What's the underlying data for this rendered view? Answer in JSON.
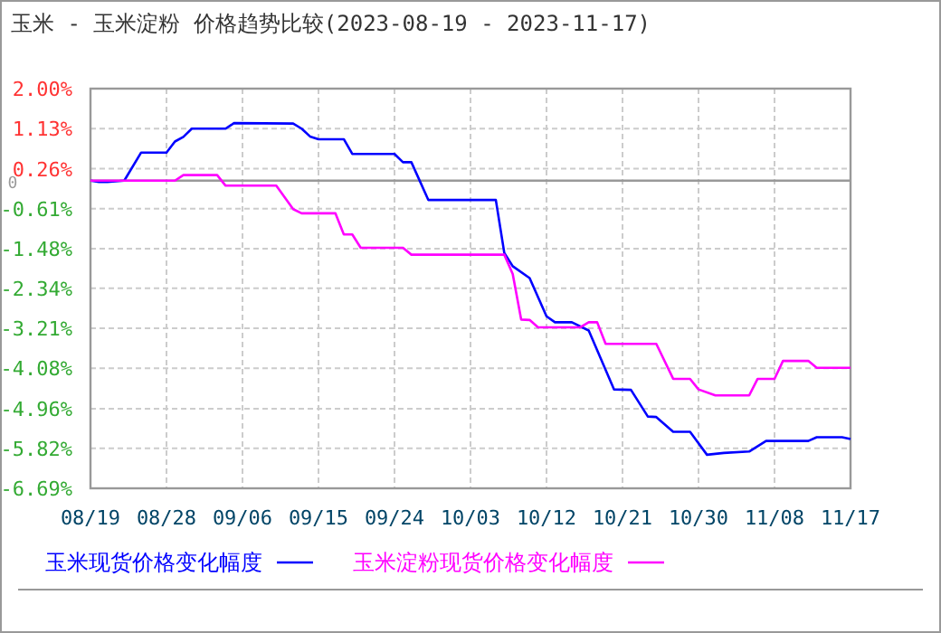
{
  "chart_data": {
    "type": "line",
    "title": "玉米 - 玉米淀粉 价格趋势比较(2023-08-19 - 2023-11-17)",
    "xlim": [
      "2023-08-19",
      "2023-11-17"
    ],
    "xticks": [
      {
        "value": "2023-08-19",
        "label": "08/19"
      },
      {
        "value": "2023-08-28",
        "label": "08/28"
      },
      {
        "value": "2023-09-06",
        "label": "09/06"
      },
      {
        "value": "2023-09-15",
        "label": "09/15"
      },
      {
        "value": "2023-09-24",
        "label": "09/24"
      },
      {
        "value": "2023-10-03",
        "label": "10/03"
      },
      {
        "value": "2023-10-12",
        "label": "10/12"
      },
      {
        "value": "2023-10-21",
        "label": "10/21"
      },
      {
        "value": "2023-10-30",
        "label": "10/30"
      },
      {
        "value": "2023-11-08",
        "label": "11/08"
      },
      {
        "value": "2023-11-17",
        "label": "11/17"
      }
    ],
    "ylim": [
      -6.69,
      2.0
    ],
    "yticks": [
      {
        "value": 2.0,
        "label": "2.00%"
      },
      {
        "value": 1.13,
        "label": "1.13%"
      },
      {
        "value": 0.26,
        "label": "0.26%"
      },
      {
        "value": -0.61,
        "label": "-0.61%"
      },
      {
        "value": -1.48,
        "label": "-1.48%"
      },
      {
        "value": -2.34,
        "label": "-2.34%"
      },
      {
        "value": -3.21,
        "label": "-3.21%"
      },
      {
        "value": -4.08,
        "label": "-4.08%"
      },
      {
        "value": -4.96,
        "label": "-4.96%"
      },
      {
        "value": -5.82,
        "label": "-5.82%"
      },
      {
        "value": -6.69,
        "label": "-6.69%"
      }
    ],
    "ref_lines": [
      {
        "axis": "y",
        "value": 0,
        "label": "0",
        "color": "#999999"
      }
    ],
    "grid": true,
    "legend": "bottom",
    "line_style": "solid",
    "series": [
      {
        "name": "玉米现货价格变化幅度",
        "color": "#0000ff",
        "x": [
          "2023-08-19",
          "2023-08-20",
          "2023-08-21",
          "2023-08-23",
          "2023-08-25",
          "2023-08-28",
          "2023-08-29",
          "2023-08-30",
          "2023-08-31",
          "2023-09-04",
          "2023-09-05",
          "2023-09-12",
          "2023-09-13",
          "2023-09-14",
          "2023-09-15",
          "2023-09-18",
          "2023-09-19",
          "2023-09-24",
          "2023-09-25",
          "2023-09-26",
          "2023-09-28",
          "2023-10-06",
          "2023-10-07",
          "2023-10-08",
          "2023-10-10",
          "2023-10-12",
          "2023-10-13",
          "2023-10-15",
          "2023-10-17",
          "2023-10-20",
          "2023-10-22",
          "2023-10-24",
          "2023-10-25",
          "2023-10-27",
          "2023-10-29",
          "2023-10-31",
          "2023-11-02",
          "2023-11-05",
          "2023-11-07",
          "2023-11-12",
          "2023-11-13",
          "2023-11-16",
          "2023-11-17"
        ],
        "values": [
          0,
          -0.03,
          -0.03,
          0,
          0.61,
          0.61,
          0.85,
          0.95,
          1.13,
          1.13,
          1.25,
          1.24,
          1.13,
          0.96,
          0.9,
          0.9,
          0.58,
          0.58,
          0.4,
          0.4,
          -0.42,
          -0.42,
          -1.57,
          -1.86,
          -2.12,
          -2.95,
          -3.08,
          -3.08,
          -3.26,
          -4.54,
          -4.55,
          -5.13,
          -5.14,
          -5.46,
          -5.46,
          -5.96,
          -5.92,
          -5.89,
          -5.66,
          -5.66,
          -5.58,
          -5.58,
          -5.62
        ]
      },
      {
        "name": "玉米淀粉现货价格变化幅度",
        "color": "#ff00ff",
        "x": [
          "2023-08-19",
          "2023-08-29",
          "2023-08-30",
          "2023-09-03",
          "2023-09-04",
          "2023-09-10",
          "2023-09-12",
          "2023-09-13",
          "2023-09-17",
          "2023-09-18",
          "2023-09-19",
          "2023-09-20",
          "2023-09-25",
          "2023-09-26",
          "2023-10-07",
          "2023-10-08",
          "2023-10-09",
          "2023-10-10",
          "2023-10-11",
          "2023-10-16",
          "2023-10-17",
          "2023-10-18",
          "2023-10-19",
          "2023-10-25",
          "2023-10-27",
          "2023-10-29",
          "2023-10-30",
          "2023-11-01",
          "2023-11-05",
          "2023-11-06",
          "2023-11-08",
          "2023-11-09",
          "2023-11-12",
          "2023-11-13",
          "2023-11-17"
        ],
        "values": [
          0,
          0,
          0.12,
          0.12,
          -0.11,
          -0.11,
          -0.62,
          -0.71,
          -0.71,
          -1.17,
          -1.17,
          -1.46,
          -1.46,
          -1.61,
          -1.61,
          -2.03,
          -3.02,
          -3.03,
          -3.19,
          -3.19,
          -3.08,
          -3.08,
          -3.55,
          -3.55,
          -4.31,
          -4.31,
          -4.54,
          -4.67,
          -4.67,
          -4.31,
          -4.31,
          -3.92,
          -3.92,
          -4.07,
          -4.07
        ]
      }
    ]
  }
}
